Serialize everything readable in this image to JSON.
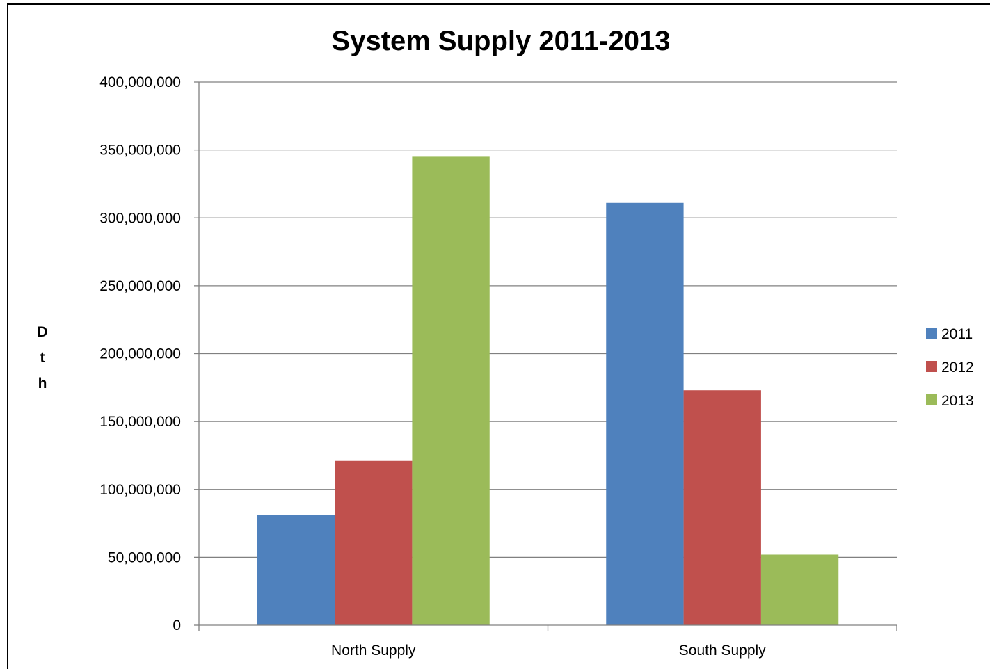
{
  "chart_data": {
    "type": "bar",
    "title": "System Supply 2011-2013",
    "xlabel": "",
    "ylabel": "Dth",
    "categories": [
      "North Supply",
      "South Supply"
    ],
    "series": [
      {
        "name": "2011",
        "color": "#4F81BD",
        "values": [
          81000000,
          311000000
        ]
      },
      {
        "name": "2012",
        "color": "#C0504D",
        "values": [
          121000000,
          173000000
        ]
      },
      {
        "name": "2013",
        "color": "#9BBB59",
        "values": [
          345000000,
          52000000
        ]
      }
    ],
    "ylim": [
      0,
      400000000
    ],
    "yticks": [
      0,
      50000000,
      100000000,
      150000000,
      200000000,
      250000000,
      300000000,
      350000000,
      400000000
    ],
    "ytick_labels": [
      "0",
      "50,000,000",
      "100,000,000",
      "150,000,000",
      "200,000,000",
      "250,000,000",
      "300,000,000",
      "350,000,000",
      "400,000,000"
    ],
    "grid": true,
    "legend_position": "right"
  }
}
